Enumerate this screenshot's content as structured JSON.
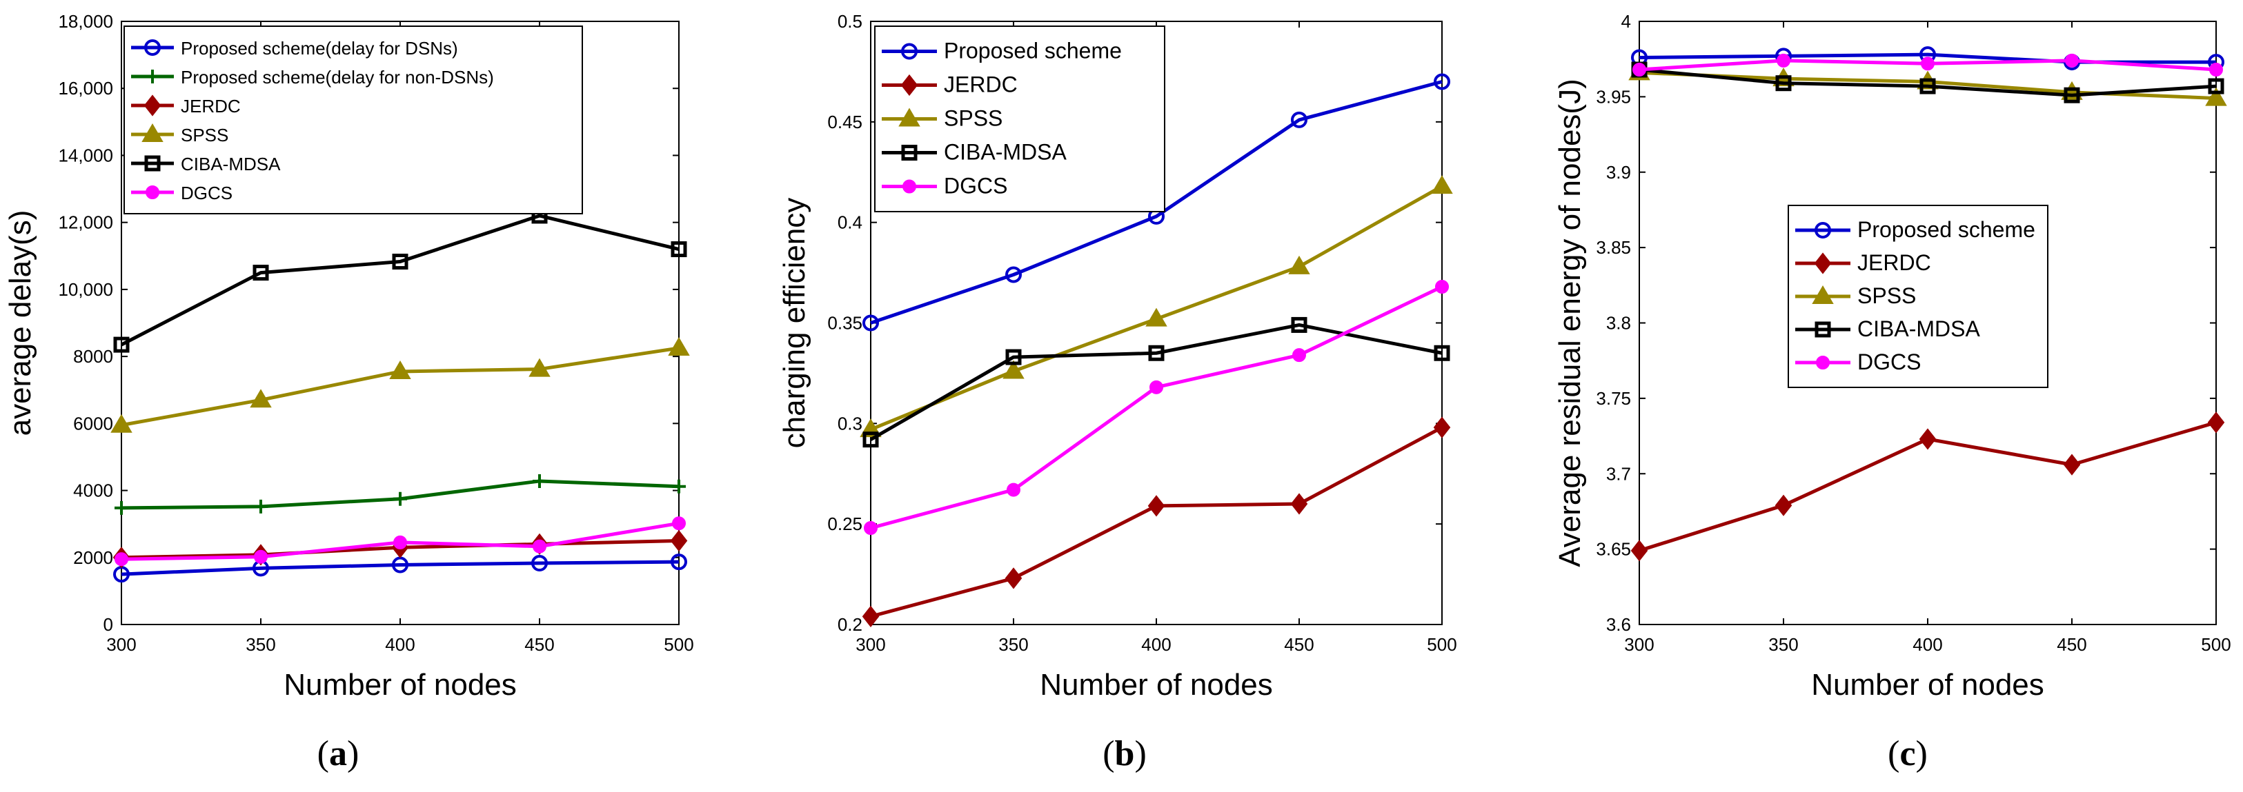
{
  "colors": {
    "proposed": "#0000cc",
    "proposed_non_dsn": "#006600",
    "jerdc": "#990000",
    "spss": "#998800",
    "ciba": "#000000",
    "dgcs": "#ff00ff"
  },
  "chart_data": [
    {
      "type": "line",
      "caption": {
        "open": "(",
        "letter": "a",
        "close": ")"
      },
      "xlabel": "Number of nodes",
      "ylabel": "average delay(s)",
      "x": [
        300,
        350,
        400,
        450,
        500
      ],
      "xlim": [
        300,
        500
      ],
      "ylim": [
        0,
        18000
      ],
      "xticks": [
        300,
        350,
        400,
        450,
        500
      ],
      "xtick_labels": [
        "300",
        "350",
        "400",
        "450",
        "500"
      ],
      "yticks": [
        0,
        2000,
        4000,
        6000,
        8000,
        10000,
        12000,
        14000,
        16000,
        18000
      ],
      "ytick_labels": [
        "0",
        "2000",
        "4000",
        "6000",
        "8000",
        "10,000",
        "12,000",
        "14,000",
        "16,000",
        "18,000"
      ],
      "grid": false,
      "legend_position": "top-left",
      "series": [
        {
          "name": "Proposed scheme(delay for DSNs)",
          "color": "#0000cc",
          "marker": "circle",
          "values": [
            1500,
            1680,
            1780,
            1830,
            1870
          ]
        },
        {
          "name": "Proposed scheme(delay for non-DSNs)",
          "color": "#006600",
          "marker": "plus",
          "values": [
            3480,
            3520,
            3750,
            4280,
            4120
          ]
        },
        {
          "name": "JERDC",
          "color": "#990000",
          "marker": "diamond",
          "values": [
            2000,
            2080,
            2300,
            2400,
            2500
          ]
        },
        {
          "name": "SPSS",
          "color": "#998800",
          "marker": "triangle",
          "values": [
            5950,
            6700,
            7550,
            7620,
            8250
          ]
        },
        {
          "name": "CIBA-MDSA",
          "color": "#000000",
          "marker": "square",
          "values": [
            8350,
            10500,
            10830,
            12200,
            11200
          ]
        },
        {
          "name": "DGCS",
          "color": "#ff00ff",
          "marker": "dot",
          "values": [
            1950,
            2020,
            2450,
            2330,
            3020
          ]
        }
      ]
    },
    {
      "type": "line",
      "caption": {
        "open": "(",
        "letter": "b",
        "close": ")"
      },
      "xlabel": "Number of nodes",
      "ylabel": "charging efficiency",
      "x": [
        300,
        350,
        400,
        450,
        500
      ],
      "xlim": [
        300,
        500
      ],
      "ylim": [
        0.2,
        0.5
      ],
      "xticks": [
        300,
        350,
        400,
        450,
        500
      ],
      "xtick_labels": [
        "300",
        "350",
        "400",
        "450",
        "500"
      ],
      "yticks": [
        0.2,
        0.25,
        0.3,
        0.35,
        0.4,
        0.45,
        0.5
      ],
      "ytick_labels": [
        "0.2",
        "0.25",
        "0.3",
        "0.35",
        "0.4",
        "0.45",
        "0.5"
      ],
      "grid": false,
      "legend_position": "top-left",
      "series": [
        {
          "name": "Proposed scheme",
          "color": "#0000cc",
          "marker": "circle",
          "values": [
            0.35,
            0.374,
            0.403,
            0.451,
            0.47
          ]
        },
        {
          "name": "JERDC",
          "color": "#990000",
          "marker": "diamond",
          "values": [
            0.204,
            0.223,
            0.259,
            0.26,
            0.298
          ]
        },
        {
          "name": "SPSS",
          "color": "#998800",
          "marker": "triangle",
          "values": [
            0.297,
            0.326,
            0.352,
            0.378,
            0.418
          ]
        },
        {
          "name": "CIBA-MDSA",
          "color": "#000000",
          "marker": "square",
          "values": [
            0.292,
            0.333,
            0.335,
            0.349,
            0.335
          ]
        },
        {
          "name": "DGCS",
          "color": "#ff00ff",
          "marker": "dot",
          "values": [
            0.248,
            0.267,
            0.318,
            0.334,
            0.368
          ]
        }
      ]
    },
    {
      "type": "line",
      "caption": {
        "open": "(",
        "letter": "c",
        "close": ")"
      },
      "xlabel": "Number of nodes",
      "ylabel": "Average residual energy of nodes(J)",
      "x": [
        300,
        350,
        400,
        450,
        500
      ],
      "xlim": [
        300,
        500
      ],
      "ylim": [
        3.6,
        4.0
      ],
      "xticks": [
        300,
        350,
        400,
        450,
        500
      ],
      "xtick_labels": [
        "300",
        "350",
        "400",
        "450",
        "500"
      ],
      "yticks": [
        3.6,
        3.65,
        3.7,
        3.75,
        3.8,
        3.85,
        3.9,
        3.95,
        4.0
      ],
      "ytick_labels": [
        "3.6",
        "3.65",
        "3.7",
        "3.75",
        "3.8",
        "3.85",
        "3.9",
        "3.95",
        "4"
      ],
      "grid": false,
      "legend_position": "center",
      "series": [
        {
          "name": "Proposed scheme",
          "color": "#0000cc",
          "marker": "circle",
          "values": [
            3.976,
            3.977,
            3.978,
            3.973,
            3.973
          ]
        },
        {
          "name": "JERDC",
          "color": "#990000",
          "marker": "diamond",
          "values": [
            3.649,
            3.679,
            3.723,
            3.706,
            3.734
          ]
        },
        {
          "name": "SPSS",
          "color": "#998800",
          "marker": "triangle",
          "values": [
            3.966,
            3.962,
            3.96,
            3.953,
            3.949
          ]
        },
        {
          "name": "CIBA-MDSA",
          "color": "#000000",
          "marker": "square",
          "values": [
            3.968,
            3.959,
            3.957,
            3.951,
            3.957
          ]
        },
        {
          "name": "DGCS",
          "color": "#ff00ff",
          "marker": "dot",
          "values": [
            3.968,
            3.974,
            3.972,
            3.974,
            3.968
          ]
        }
      ]
    }
  ]
}
